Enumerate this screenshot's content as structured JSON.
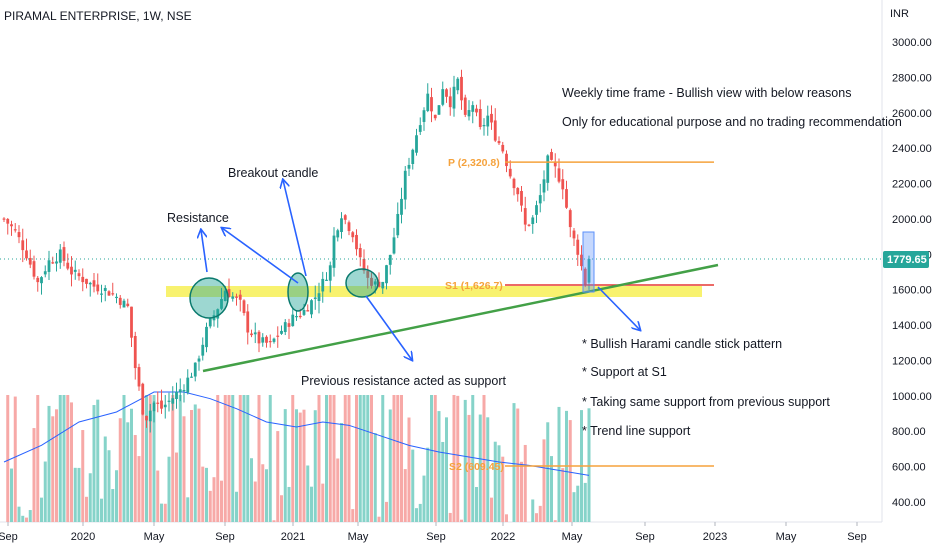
{
  "header": {
    "symbol": "PIRAMAL ENTERPRISE, 1W, NSE",
    "currency": "INR"
  },
  "colors": {
    "up": "#26a69a",
    "down": "#ef5350",
    "upVol": "#86d3c9",
    "downVol": "#f7a9a7",
    "ma": "#2962ff",
    "green": "#43a047",
    "orange": "#f5a23c",
    "red": "#e53935",
    "zone": "#f7f056",
    "arrow": "#2962ff",
    "circle": "#26a69a"
  },
  "chart_data": {
    "type": "candlestick",
    "title": "PIRAMAL ENTERPRISE, 1W, NSE",
    "ylabel": "INR",
    "ylim": [
      340,
      3100
    ],
    "yticks": [
      400,
      600,
      800,
      1000,
      1200,
      1400,
      1600,
      1800,
      2000,
      2200,
      2400,
      2600,
      2800,
      3000
    ],
    "ytick_labels": [
      "400.00",
      "600.00",
      "800.00",
      "1000.00",
      "1200.00",
      "1400.00",
      "1600.00",
      "1800.00",
      "2000.00",
      "2200.00",
      "2400.00",
      "2600.00",
      "2800.00",
      "3000.00"
    ],
    "xticks": [
      "Sep",
      "2020",
      "May",
      "Sep",
      "2021",
      "May",
      "Sep",
      "2022",
      "May",
      "Sep",
      "2023",
      "May",
      "Sep"
    ],
    "last_price": "1779.65",
    "close_path": [
      [
        0,
        2000
      ],
      [
        3,
        1930
      ],
      [
        6,
        1800
      ],
      [
        9,
        1640
      ],
      [
        12,
        1760
      ],
      [
        15,
        1800
      ],
      [
        18,
        1700
      ],
      [
        21,
        1660
      ],
      [
        24,
        1620
      ],
      [
        27,
        1600
      ],
      [
        30,
        1560
      ],
      [
        33,
        1500
      ],
      [
        35,
        1160
      ],
      [
        37,
        920
      ],
      [
        38,
        880
      ],
      [
        40,
        960
      ],
      [
        42,
        930
      ],
      [
        45,
        990
      ],
      [
        48,
        1060
      ],
      [
        51,
        1160
      ],
      [
        54,
        1370
      ],
      [
        57,
        1500
      ],
      [
        59,
        1600
      ],
      [
        61,
        1560
      ],
      [
        63,
        1520
      ],
      [
        65,
        1380
      ],
      [
        68,
        1310
      ],
      [
        71,
        1290
      ],
      [
        74,
        1370
      ],
      [
        77,
        1440
      ],
      [
        80,
        1480
      ],
      [
        83,
        1560
      ],
      [
        85,
        1640
      ],
      [
        87,
        1730
      ],
      [
        88,
        1900
      ],
      [
        90,
        2030
      ],
      [
        93,
        1920
      ],
      [
        95,
        1760
      ],
      [
        97,
        1660
      ],
      [
        99,
        1630
      ],
      [
        101,
        1650
      ],
      [
        103,
        1800
      ],
      [
        105,
        2000
      ],
      [
        107,
        2250
      ],
      [
        109,
        2400
      ],
      [
        111,
        2560
      ],
      [
        113,
        2700
      ],
      [
        115,
        2560
      ],
      [
        117,
        2750
      ],
      [
        119,
        2660
      ],
      [
        121,
        2780
      ],
      [
        123,
        2560
      ],
      [
        125,
        2650
      ],
      [
        127,
        2500
      ],
      [
        129,
        2580
      ],
      [
        131,
        2470
      ],
      [
        133,
        2390
      ],
      [
        135,
        2250
      ],
      [
        137,
        2150
      ],
      [
        139,
        1960
      ],
      [
        141,
        2000
      ],
      [
        143,
        2130
      ],
      [
        145,
        2330
      ],
      [
        147,
        2280
      ],
      [
        149,
        2190
      ],
      [
        151,
        1940
      ],
      [
        153,
        1820
      ],
      [
        155,
        1640
      ],
      [
        156,
        1779.65
      ]
    ],
    "volume_path": [
      [
        0,
        500
      ],
      [
        10,
        520
      ],
      [
        20,
        540
      ],
      [
        30,
        560
      ],
      [
        35,
        720
      ],
      [
        40,
        650
      ],
      [
        45,
        600
      ],
      [
        50,
        640
      ],
      [
        55,
        580
      ],
      [
        60,
        610
      ],
      [
        70,
        540
      ],
      [
        80,
        580
      ],
      [
        85,
        680
      ],
      [
        90,
        640
      ],
      [
        95,
        570
      ],
      [
        100,
        560
      ],
      [
        105,
        620
      ],
      [
        110,
        600
      ],
      [
        115,
        590
      ],
      [
        120,
        560
      ],
      [
        125,
        520
      ],
      [
        130,
        500
      ],
      [
        135,
        520
      ],
      [
        140,
        480
      ],
      [
        145,
        470
      ],
      [
        150,
        480
      ],
      [
        156,
        560
      ]
    ],
    "volume_ma_path": [
      [
        0,
        480
      ],
      [
        10,
        530
      ],
      [
        20,
        600
      ],
      [
        30,
        630
      ],
      [
        40,
        690
      ],
      [
        48,
        690
      ],
      [
        55,
        670
      ],
      [
        62,
        640
      ],
      [
        70,
        600
      ],
      [
        78,
        585
      ],
      [
        85,
        600
      ],
      [
        92,
        590
      ],
      [
        100,
        560
      ],
      [
        108,
        530
      ],
      [
        116,
        510
      ],
      [
        124,
        495
      ],
      [
        132,
        480
      ],
      [
        140,
        470
      ],
      [
        148,
        455
      ],
      [
        156,
        440
      ]
    ],
    "levels": [
      {
        "label": "P (2,320.8)",
        "value": 2320.8
      },
      {
        "label": "S1 (1,626.7)",
        "value": 1626.7
      },
      {
        "label": "S2 (609.45)",
        "value": 609.45
      }
    ]
  },
  "annotations": {
    "breakout": "Breakout candle",
    "resistance": "Resistance",
    "weekly": "Weekly time frame - Bullish view with below reasons",
    "educational": "Only for educational purpose and no trading recommendation",
    "previous": "Previous resistance acted as support",
    "harami": "* Bullish Harami candle stick pattern",
    "support_s1": "* Support at S1",
    "same_support": "* Taking same support from previous support",
    "trendline": "* Trend line support"
  }
}
